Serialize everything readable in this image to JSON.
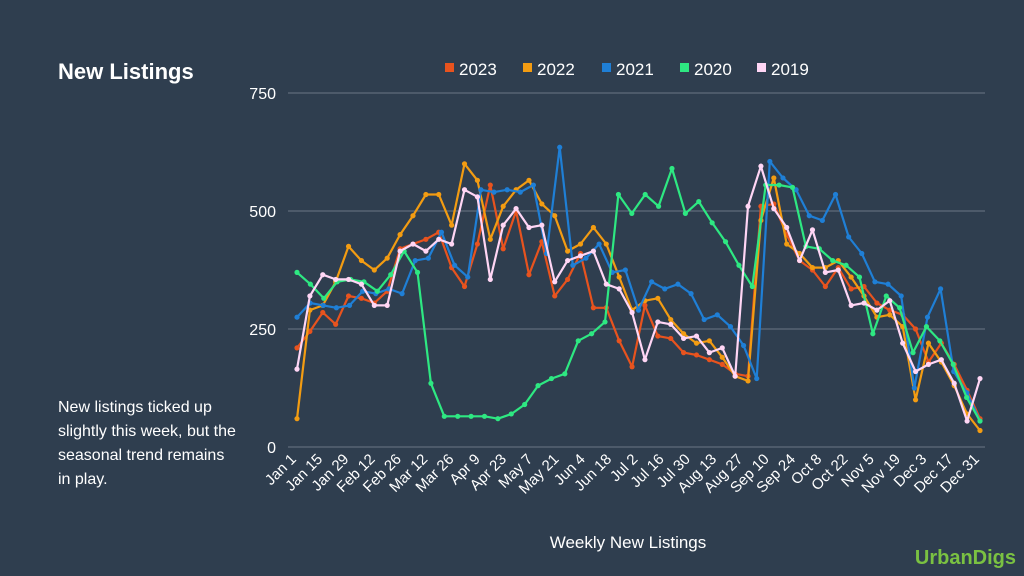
{
  "sidebar": {
    "title": "New Listings",
    "note": "New listings ticked up slightly this week, but the seasonal trend remains in play."
  },
  "brand": "UrbanDigs",
  "chart_data": {
    "type": "line",
    "xlabel": "Weekly New Listings",
    "ylabel": "",
    "ylim": [
      0,
      750
    ],
    "yticks": [
      0,
      250,
      500,
      750
    ],
    "grid": "horizontal",
    "legend_position": "top",
    "x_tick_labels": [
      "Jan 1",
      "Jan 15",
      "Jan 29",
      "Feb 12",
      "Feb 26",
      "Mar 12",
      "Mar 26",
      "Apr 9",
      "Apr 23",
      "May 7",
      "May 21",
      "Jun 4",
      "Jun 18",
      "Jul 2",
      "Jul 16",
      "Jul 30",
      "Aug 13",
      "Aug 27",
      "Sep 10",
      "Sep 24",
      "Oct 8",
      "Oct 22",
      "Nov 5",
      "Nov 19",
      "Dec 3",
      "Dec 17",
      "Dec 31"
    ],
    "series": [
      {
        "name": "2023",
        "color": "#e8531e",
        "values": [
          210,
          245,
          285,
          260,
          320,
          315,
          305,
          330,
          420,
          430,
          440,
          455,
          380,
          340,
          430,
          555,
          420,
          500,
          365,
          435,
          320,
          355,
          410,
          295,
          295,
          225,
          170,
          300,
          235,
          230,
          200,
          195,
          185,
          175,
          155,
          150,
          510,
          515,
          450,
          395,
          375,
          340,
          380,
          335,
          340,
          305,
          290,
          280,
          250,
          180,
          220,
          175,
          120,
          60
        ]
      },
      {
        "name": "2022",
        "color": "#f39c12",
        "values": [
          60,
          290,
          300,
          350,
          425,
          395,
          375,
          400,
          450,
          490,
          535,
          535,
          470,
          600,
          565,
          440,
          510,
          545,
          565,
          515,
          490,
          415,
          430,
          465,
          430,
          360,
          290,
          310,
          315,
          270,
          240,
          220,
          225,
          190,
          150,
          140,
          480,
          570,
          430,
          410,
          380,
          380,
          395,
          360,
          320,
          275,
          280,
          255,
          100,
          220,
          180,
          130,
          70,
          35
        ]
      },
      {
        "name": "2021",
        "color": "#1f7fd6",
        "values": [
          275,
          305,
          300,
          295,
          300,
          330,
          325,
          335,
          325,
          395,
          400,
          455,
          385,
          360,
          545,
          540,
          545,
          540,
          555,
          410,
          635,
          385,
          400,
          430,
          370,
          375,
          290,
          350,
          335,
          345,
          325,
          270,
          280,
          255,
          215,
          145,
          605,
          570,
          545,
          490,
          480,
          535,
          445,
          410,
          350,
          345,
          320,
          125,
          275,
          335,
          160,
          115,
          55
        ]
      },
      {
        "name": "2020",
        "color": "#2ee882",
        "values": [
          370,
          345,
          315,
          350,
          355,
          350,
          330,
          365,
          415,
          370,
          135,
          65,
          65,
          65,
          65,
          60,
          70,
          90,
          130,
          145,
          155,
          225,
          240,
          265,
          535,
          495,
          535,
          510,
          590,
          495,
          520,
          475,
          435,
          385,
          340,
          555,
          555,
          550,
          425,
          420,
          395,
          385,
          360,
          240,
          320,
          295,
          200,
          255,
          225,
          175,
          105,
          55
        ]
      },
      {
        "name": "2019",
        "color": "#ffd6f5",
        "values": [
          165,
          320,
          365,
          355,
          355,
          345,
          300,
          300,
          415,
          430,
          415,
          440,
          430,
          545,
          530,
          355,
          470,
          505,
          465,
          470,
          350,
          395,
          405,
          415,
          345,
          335,
          285,
          185,
          265,
          260,
          230,
          235,
          200,
          210,
          150,
          510,
          595,
          505,
          465,
          395,
          460,
          370,
          375,
          300,
          305,
          290,
          310,
          220,
          160,
          175,
          185,
          135,
          55,
          145
        ]
      }
    ]
  }
}
